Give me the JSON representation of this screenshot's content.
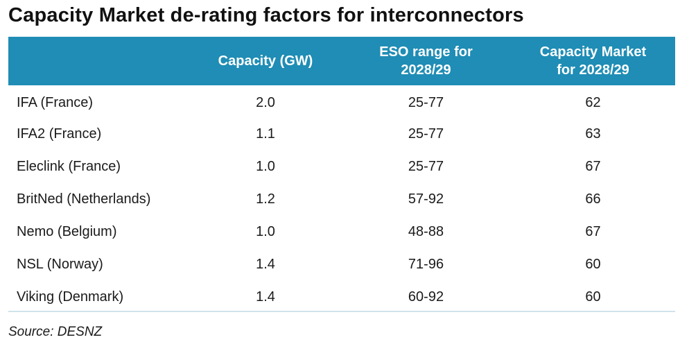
{
  "title": "Capacity Market de-rating factors for interconnectors",
  "source": "Source: DESNZ",
  "chart_data": {
    "type": "table",
    "title": "Capacity Market de-rating factors for interconnectors",
    "columns": [
      "",
      "Capacity (GW)",
      "ESO range for 2028/29",
      "Capacity Market for 2028/29"
    ],
    "header_lines": [
      [
        ""
      ],
      [
        "Capacity (GW)"
      ],
      [
        "ESO range for",
        "2028/29"
      ],
      [
        "Capacity Market",
        "for 2028/29"
      ]
    ],
    "rows": [
      [
        "IFA (France)",
        "2.0",
        "25-77",
        "62"
      ],
      [
        "IFA2 (France)",
        "1.1",
        "25-77",
        "63"
      ],
      [
        "Eleclink (France)",
        "1.0",
        "25-77",
        "67"
      ],
      [
        "BritNed (Netherlands)",
        "1.2",
        "57-92",
        "66"
      ],
      [
        "Nemo (Belgium)",
        "1.0",
        "48-88",
        "67"
      ],
      [
        "NSL (Norway)",
        "1.4",
        "71-96",
        "60"
      ],
      [
        "Viking (Denmark)",
        "1.4",
        "60-92",
        "60"
      ]
    ]
  },
  "colors": {
    "header_bg": "#1f8db5",
    "header_text": "#ffffff",
    "rule": "#cfe3ea"
  }
}
